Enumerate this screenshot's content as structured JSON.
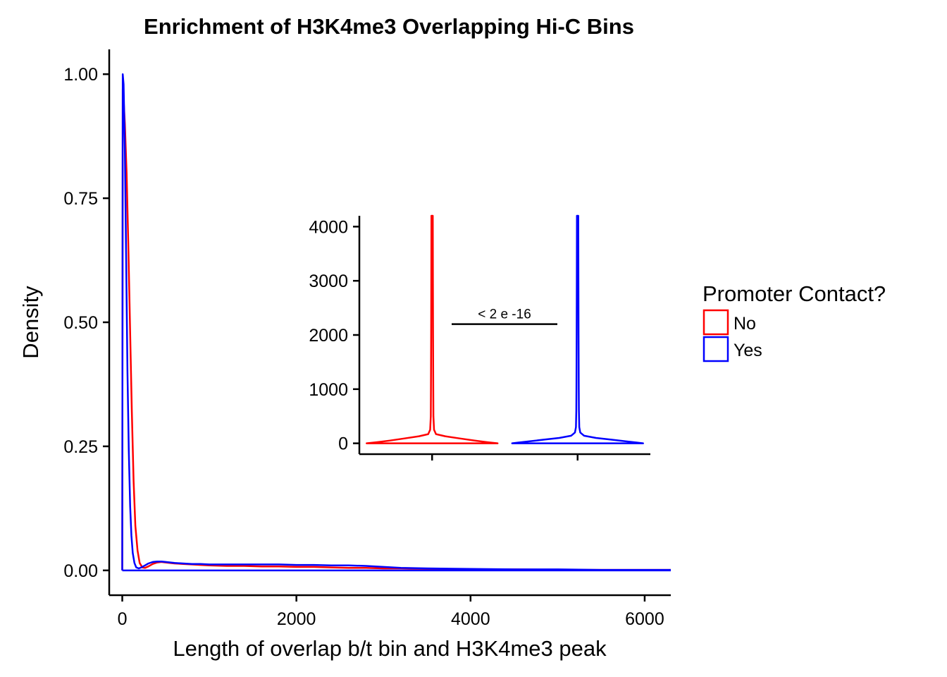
{
  "chart_data": [
    {
      "type": "line",
      "title": "Enrichment of H3K4me3 Overlapping Hi-C Bins",
      "xlabel": "Length of overlap b/t bin and H3K4me3 peak",
      "ylabel": "Density",
      "xlim": [
        -150,
        6300
      ],
      "ylim": [
        -0.05,
        1.05
      ],
      "xticks": [
        0,
        2000,
        4000,
        6000
      ],
      "xtick_labels": [
        "0",
        "2000",
        "4000",
        "6000"
      ],
      "yticks": [
        0,
        0.25,
        0.5,
        0.75,
        1
      ],
      "ytick_labels": [
        "0.00",
        "0.25",
        "0.50",
        "0.75",
        "1.00"
      ],
      "grid": false,
      "legend": {
        "title": "Promoter Contact?",
        "placement": "right",
        "entries": [
          {
            "label": "No",
            "color": "#ff0000"
          },
          {
            "label": "Yes",
            "color": "#0000ff"
          }
        ]
      },
      "series": [
        {
          "name": "No",
          "color": "#ff0000",
          "x": [
            0,
            5,
            15,
            30,
            50,
            70,
            90,
            110,
            130,
            150,
            175,
            200,
            230,
            260,
            300,
            350,
            400,
            450,
            500,
            600,
            700,
            800,
            900,
            1000,
            1200,
            1400,
            1600,
            1800,
            2000,
            2200,
            2400,
            2600,
            2800,
            3000,
            3200,
            3500,
            4000,
            4500,
            5000,
            5500,
            6300
          ],
          "y": [
            0,
            0.97,
            0.95,
            0.9,
            0.8,
            0.65,
            0.48,
            0.32,
            0.18,
            0.09,
            0.04,
            0.015,
            0.006,
            0.005,
            0.008,
            0.013,
            0.016,
            0.017,
            0.016,
            0.014,
            0.013,
            0.012,
            0.011,
            0.01,
            0.009,
            0.009,
            0.008,
            0.008,
            0.007,
            0.007,
            0.006,
            0.005,
            0.005,
            0.004,
            0.004,
            0.003,
            0.002,
            0.002,
            0.001,
            0.001,
            0.001
          ]
        },
        {
          "name": "Yes",
          "color": "#0000ff",
          "x": [
            0,
            5,
            15,
            30,
            45,
            60,
            75,
            90,
            105,
            120,
            140,
            160,
            190,
            220,
            260,
            300,
            350,
            400,
            450,
            500,
            600,
            700,
            800,
            900,
            1000,
            1200,
            1400,
            1600,
            1800,
            2000,
            2200,
            2400,
            2600,
            2800,
            3000,
            3200,
            3500,
            4000,
            4500,
            5000,
            5500,
            6300
          ],
          "y": [
            0,
            1.0,
            0.98,
            0.85,
            0.62,
            0.4,
            0.24,
            0.13,
            0.07,
            0.035,
            0.015,
            0.006,
            0.004,
            0.006,
            0.01,
            0.014,
            0.017,
            0.018,
            0.018,
            0.017,
            0.015,
            0.014,
            0.013,
            0.013,
            0.012,
            0.012,
            0.012,
            0.012,
            0.012,
            0.011,
            0.011,
            0.01,
            0.01,
            0.009,
            0.007,
            0.005,
            0.004,
            0.003,
            0.002,
            0.002,
            0.001,
            0.001
          ]
        }
      ]
    },
    {
      "type": "violin",
      "title": "",
      "xlabel": "",
      "ylabel": "",
      "ylim": [
        -200,
        4200
      ],
      "yticks": [
        0,
        1000,
        2000,
        3000,
        4000
      ],
      "ytick_labels": [
        "0",
        "1000",
        "2000",
        "3000",
        "4000"
      ],
      "categories": [
        "No",
        "Yes"
      ],
      "colors": [
        "#ff0000",
        "#0000ff"
      ],
      "violins": [
        {
          "name": "No",
          "color": "#ff0000",
          "y": [
            0,
            20,
            50,
            90,
            130,
            170,
            250,
            500,
            1000,
            2000,
            3000,
            4200
          ],
          "half_width": [
            1.0,
            0.85,
            0.65,
            0.42,
            0.2,
            0.06,
            0.03,
            0.02,
            0.018,
            0.015,
            0.012,
            0.01
          ]
        },
        {
          "name": "Yes",
          "color": "#0000ff",
          "y": [
            0,
            15,
            40,
            70,
            100,
            140,
            200,
            300,
            600,
            1000,
            2000,
            3000,
            4200
          ],
          "half_width": [
            1.0,
            0.9,
            0.72,
            0.5,
            0.28,
            0.1,
            0.04,
            0.025,
            0.02,
            0.018,
            0.015,
            0.012,
            0.01
          ]
        }
      ],
      "annotation": {
        "text": "< 2 e -16",
        "y": 2200
      }
    }
  ]
}
